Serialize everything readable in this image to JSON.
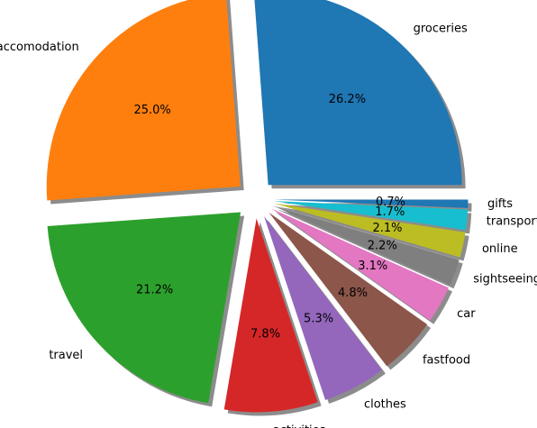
{
  "chart_data": {
    "type": "pie",
    "title": "",
    "categories": [
      "groceries",
      "accomodation",
      "travel",
      "activities",
      "clothes",
      "fastfood",
      "car",
      "sightseeing",
      "online",
      "transport",
      "gifts"
    ],
    "values": [
      26.2,
      25.0,
      21.2,
      7.8,
      5.3,
      4.8,
      3.1,
      2.2,
      2.1,
      1.7,
      0.7
    ],
    "value_labels": [
      "26.2%",
      "25.0%",
      "21.2%",
      "7.8%",
      "5.3%",
      "4.8%",
      "3.1%",
      "2.2%",
      "2.1%",
      "1.7%",
      "0.7%"
    ],
    "colors": [
      "#1f77b4",
      "#ff7f0e",
      "#2ca02c",
      "#d62728",
      "#9467bd",
      "#8c564b",
      "#e377c2",
      "#7f7f7f",
      "#bcbd22",
      "#17becf",
      "#1f77b4"
    ],
    "explode": [
      0.1,
      0.1,
      0.1,
      0.1,
      0.1,
      0.1,
      0.1,
      0.1,
      0.1,
      0.1,
      0.1
    ],
    "shadow": true,
    "start_angle": 0,
    "direction": "counterclockwise",
    "legend": "none"
  }
}
